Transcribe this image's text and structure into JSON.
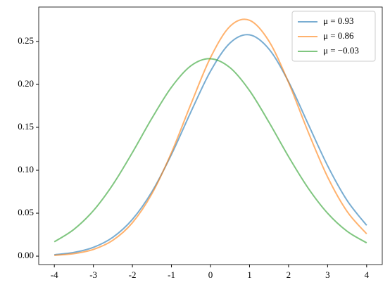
{
  "chart_data": {
    "type": "line",
    "x": [
      -4,
      -3.5,
      -3,
      -2.5,
      -2,
      -1.5,
      -1,
      -0.5,
      0,
      0.5,
      1,
      1.5,
      2,
      2.5,
      3,
      3.5,
      4
    ],
    "series": [
      {
        "name": "μ = 0.93",
        "color": "#1f77b4",
        "values": [
          0.0016,
          0.0043,
          0.0102,
          0.022,
          0.0428,
          0.075,
          0.1184,
          0.1682,
          0.2153,
          0.2482,
          0.2577,
          0.241,
          0.2031,
          0.154,
          0.1053,
          0.0648,
          0.0359
        ]
      },
      {
        "name": "μ = 0.86",
        "color": "#ff7f0e",
        "values": [
          0.001,
          0.0029,
          0.0078,
          0.0185,
          0.0389,
          0.0727,
          0.1205,
          0.1772,
          0.2312,
          0.2676,
          0.2747,
          0.2502,
          0.2022,
          0.1449,
          0.0922,
          0.052,
          0.026
        ]
      },
      {
        "name": "μ = −0.03",
        "color": "#2ca02c",
        "values": [
          0.0167,
          0.0311,
          0.053,
          0.0834,
          0.1207,
          0.1606,
          0.1967,
          0.2217,
          0.2299,
          0.2195,
          0.1928,
          0.1558,
          0.1159,
          0.0794,
          0.05,
          0.029,
          0.0155
        ]
      }
    ],
    "xlim": [
      -4.4,
      4.4
    ],
    "xticks": [
      -4,
      -3,
      -2,
      -1,
      0,
      1,
      2,
      3,
      4
    ],
    "ylim": [
      -0.0098,
      0.2901
    ],
    "yticks": [
      {
        "value": 0,
        "label": "0.00"
      },
      {
        "value": 0.05,
        "label": "0.05"
      },
      {
        "value": 0.1,
        "label": "0.10"
      },
      {
        "value": 0.15,
        "label": "0.15"
      },
      {
        "value": 0.2,
        "label": "0.20"
      },
      {
        "value": 0.25,
        "label": "0.25"
      }
    ],
    "legend": "upper right",
    "line_alpha": 0.6
  }
}
